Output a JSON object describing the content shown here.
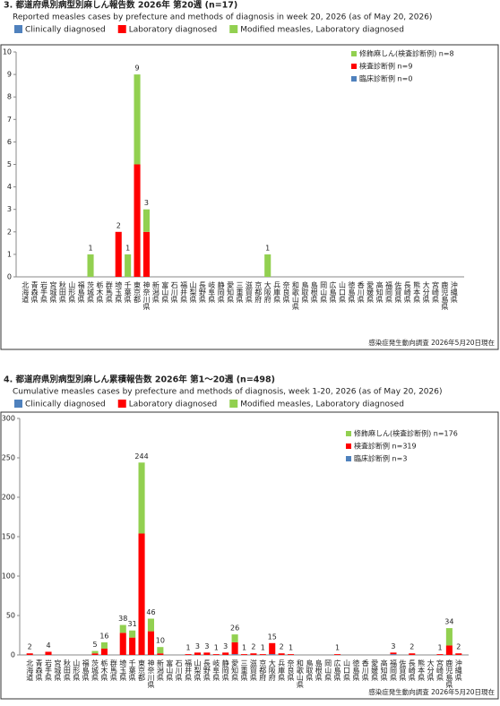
{
  "chart_data": [
    {
      "type": "bar",
      "stacked": true,
      "title": "3. 都道府県別病型別麻しん報告数  2026年 第20週 (n=17)",
      "subtitle": "Reported measles cases by prefecture and methods of diagnosis in week 20, 2026 (as of May 20, 2026)",
      "note": "感染症発生動向調査 2026年5月20日現在",
      "categories": [
        "北海道",
        "青森県",
        "岩手県",
        "宮城県",
        "秋田県",
        "山形県",
        "福島県",
        "茨城県",
        "栃木県",
        "群馬県",
        "埼玉県",
        "千葉県",
        "東京都",
        "神奈川県",
        "新潟県",
        "富山県",
        "石川県",
        "福井県",
        "山梨県",
        "長野県",
        "岐阜県",
        "静岡県",
        "愛知県",
        "三重県",
        "滋賀県",
        "京都府",
        "大阪府",
        "兵庫県",
        "奈良県",
        "和歌山県",
        "鳥取県",
        "島根県",
        "岡山県",
        "広島県",
        "山口県",
        "徳島県",
        "香川県",
        "愛媛県",
        "高知県",
        "福岡県",
        "佐賀県",
        "長崎県",
        "熊本県",
        "大分県",
        "宮崎県",
        "鹿児島県",
        "沖縄県"
      ],
      "series": [
        {
          "name": "Clinically diagnosed",
          "legend_label": "臨床診断例 n=0",
          "color": "#4f81bd",
          "values": [
            0,
            0,
            0,
            0,
            0,
            0,
            0,
            0,
            0,
            0,
            0,
            0,
            0,
            0,
            0,
            0,
            0,
            0,
            0,
            0,
            0,
            0,
            0,
            0,
            0,
            0,
            0,
            0,
            0,
            0,
            0,
            0,
            0,
            0,
            0,
            0,
            0,
            0,
            0,
            0,
            0,
            0,
            0,
            0,
            0,
            0,
            0
          ]
        },
        {
          "name": "Laboratory diagnosed",
          "legend_label": "検査診断例 n=9",
          "color": "#ff0000",
          "values": [
            0,
            0,
            0,
            0,
            0,
            0,
            0,
            0,
            0,
            0,
            2,
            0,
            5,
            2,
            0,
            0,
            0,
            0,
            0,
            0,
            0,
            0,
            0,
            0,
            0,
            0,
            0,
            0,
            0,
            0,
            0,
            0,
            0,
            0,
            0,
            0,
            0,
            0,
            0,
            0,
            0,
            0,
            0,
            0,
            0,
            0,
            0
          ]
        },
        {
          "name": "Modified measles, Laboratory diagnosed",
          "legend_label": "修飾麻しん(検査診断例) n=8",
          "color": "#92d050",
          "values": [
            0,
            0,
            0,
            0,
            0,
            0,
            0,
            1,
            0,
            0,
            0,
            1,
            4,
            1,
            0,
            0,
            0,
            0,
            0,
            0,
            0,
            0,
            0,
            0,
            0,
            0,
            1,
            0,
            0,
            0,
            0,
            0,
            0,
            0,
            0,
            0,
            0,
            0,
            0,
            0,
            0,
            0,
            0,
            0,
            0,
            0,
            0
          ]
        }
      ],
      "total_labels": [
        null,
        null,
        null,
        null,
        null,
        null,
        null,
        1,
        null,
        null,
        2,
        1,
        9,
        3,
        null,
        null,
        null,
        null,
        null,
        null,
        null,
        null,
        null,
        null,
        null,
        null,
        1,
        null,
        null,
        null,
        null,
        null,
        null,
        null,
        null,
        null,
        null,
        null,
        null,
        null,
        null,
        null,
        null,
        null,
        null,
        null,
        null
      ],
      "ylim": [
        0,
        10
      ],
      "yticks": [
        0,
        1,
        2,
        3,
        4,
        5,
        6,
        7,
        8,
        9,
        10
      ],
      "grid": false
    },
    {
      "type": "bar",
      "stacked": true,
      "title": "4. 都道府県別病型別麻しん累積報告数  2026年 第1～20週 (n=498)",
      "subtitle": "Cumulative measles cases by prefecture and methods of diagnosis, week 1-20, 2026 (as of May 20, 2026)",
      "note": "感染症発生動向調査 2026年5月20日現在",
      "categories": [
        "北海道",
        "青森県",
        "岩手県",
        "宮城県",
        "秋田県",
        "山形県",
        "福島県",
        "茨城県",
        "栃木県",
        "群馬県",
        "埼玉県",
        "千葉県",
        "東京都",
        "神奈川県",
        "新潟県",
        "富山県",
        "石川県",
        "福井県",
        "山梨県",
        "長野県",
        "岐阜県",
        "静岡県",
        "愛知県",
        "三重県",
        "滋賀県",
        "京都府",
        "大阪府",
        "兵庫県",
        "奈良県",
        "和歌山県",
        "鳥取県",
        "島根県",
        "岡山県",
        "広島県",
        "山口県",
        "徳島県",
        "香川県",
        "愛媛県",
        "高知県",
        "福岡県",
        "佐賀県",
        "長崎県",
        "熊本県",
        "大分県",
        "宮崎県",
        "鹿児島県",
        "沖縄県"
      ],
      "series": [
        {
          "name": "Clinically diagnosed",
          "legend_label": "臨床診断例 n=3",
          "color": "#4f81bd",
          "values": [
            0,
            0,
            0,
            0,
            0,
            0,
            0,
            0,
            0,
            0,
            0,
            0,
            0,
            0,
            0,
            0,
            0,
            0,
            0,
            0,
            0,
            0,
            1,
            0,
            0,
            0,
            1,
            0,
            0,
            0,
            0,
            0,
            0,
            0,
            0,
            0,
            0,
            0,
            0,
            1,
            0,
            0,
            0,
            0,
            0,
            0,
            0
          ]
        },
        {
          "name": "Laboratory diagnosed",
          "legend_label": "検査診断例 n=319",
          "color": "#ff0000",
          "values": [
            2,
            0,
            4,
            0,
            0,
            0,
            0,
            2,
            8,
            0,
            28,
            22,
            154,
            30,
            2,
            0,
            0,
            1,
            3,
            3,
            1,
            3,
            15,
            1,
            2,
            1,
            14,
            2,
            1,
            0,
            0,
            0,
            0,
            1,
            0,
            0,
            0,
            0,
            0,
            2,
            0,
            2,
            0,
            0,
            1,
            12,
            2
          ]
        },
        {
          "name": "Modified measles, Laboratory diagnosed",
          "legend_label": "修飾麻しん(検査診断例) n=176",
          "color": "#92d050",
          "values": [
            0,
            0,
            0,
            0,
            0,
            0,
            0,
            3,
            8,
            0,
            10,
            9,
            90,
            16,
            8,
            0,
            0,
            0,
            0,
            0,
            0,
            0,
            10,
            0,
            0,
            0,
            0,
            0,
            0,
            0,
            0,
            0,
            0,
            0,
            0,
            0,
            0,
            0,
            0,
            0,
            0,
            0,
            0,
            0,
            0,
            22,
            0
          ]
        }
      ],
      "total_labels": [
        2,
        null,
        4,
        null,
        null,
        null,
        null,
        5,
        16,
        null,
        38,
        31,
        244,
        46,
        10,
        null,
        null,
        1,
        3,
        3,
        1,
        3,
        26,
        1,
        2,
        1,
        15,
        2,
        1,
        null,
        null,
        null,
        null,
        1,
        null,
        null,
        null,
        null,
        null,
        3,
        null,
        2,
        null,
        null,
        1,
        34,
        2
      ],
      "ylim": [
        0,
        300
      ],
      "yticks": [
        0,
        50,
        100,
        150,
        200,
        250,
        300
      ],
      "grid": false
    }
  ]
}
